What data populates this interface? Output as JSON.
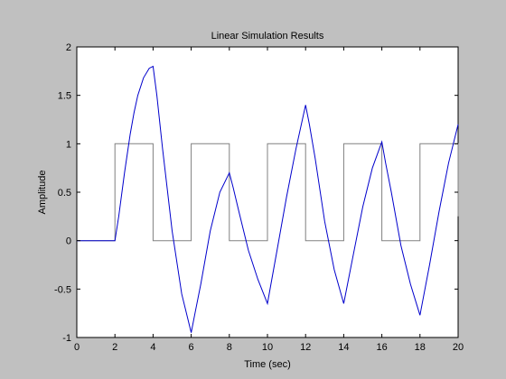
{
  "chart_data": {
    "type": "line",
    "title": "Linear Simulation Results",
    "xlabel": "Time (sec)",
    "ylabel": "Amplitude",
    "xlim": [
      0,
      20
    ],
    "ylim": [
      -1,
      2
    ],
    "xticks": [
      "0",
      "2",
      "4",
      "6",
      "8",
      "10",
      "12",
      "14",
      "16",
      "18",
      "20"
    ],
    "yticks": [
      "-1",
      "-0.5",
      "0",
      "0.5",
      "1",
      "1.5",
      "2"
    ],
    "grid": false,
    "background": "#c0c0c0",
    "plot_background": "#ffffff",
    "series": [
      {
        "role": "input",
        "color": "#808080",
        "x": [
          0,
          2,
          2,
          4,
          4,
          6,
          6,
          8,
          8,
          10,
          10,
          12,
          12,
          14,
          14,
          16,
          16,
          18,
          18,
          20,
          20
        ],
        "y": [
          0,
          0,
          1,
          1,
          0,
          0,
          1,
          1,
          0,
          0,
          1,
          1,
          0,
          0,
          1,
          1,
          0,
          0,
          1,
          1,
          0.25
        ]
      },
      {
        "role": "response",
        "color": "#0000cc",
        "x": [
          0,
          2,
          2.2,
          2.5,
          2.8,
          3.0,
          3.2,
          3.5,
          3.8,
          4.0,
          4.2,
          4.5,
          5.0,
          5.5,
          6.0,
          6.2,
          6.5,
          7.0,
          7.5,
          8.0,
          8.2,
          8.5,
          9.0,
          9.5,
          10.0,
          10.5,
          11.0,
          11.5,
          12.0,
          12.2,
          12.5,
          13.0,
          13.5,
          14.0,
          14.5,
          15.0,
          15.5,
          16.0,
          16.2,
          16.5,
          17.0,
          17.5,
          18.0,
          18.5,
          19.0,
          19.5,
          20.0
        ],
        "y": [
          0,
          0,
          0.25,
          0.7,
          1.1,
          1.32,
          1.5,
          1.68,
          1.78,
          1.8,
          1.5,
          0.95,
          0.1,
          -0.55,
          -0.95,
          -0.75,
          -0.45,
          0.1,
          0.5,
          0.7,
          0.55,
          0.3,
          -0.1,
          -0.4,
          -0.65,
          -0.1,
          0.45,
          0.95,
          1.4,
          1.2,
          0.85,
          0.2,
          -0.3,
          -0.65,
          -0.15,
          0.35,
          0.75,
          1.02,
          0.8,
          0.5,
          -0.05,
          -0.45,
          -0.77,
          -0.25,
          0.3,
          0.8,
          1.2
        ]
      }
    ]
  }
}
